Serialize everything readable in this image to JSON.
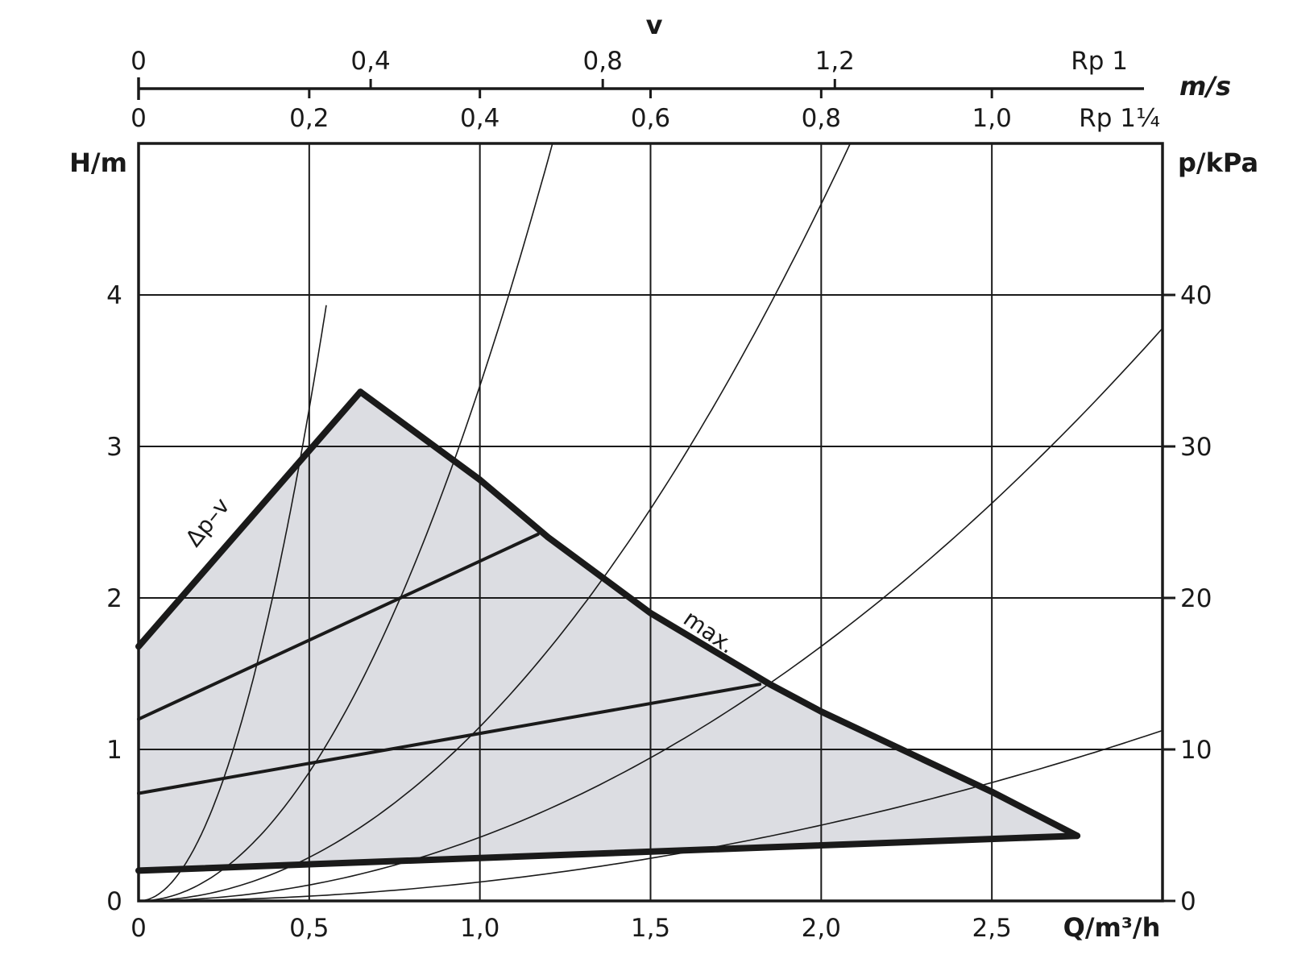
{
  "chart_data": {
    "type": "area",
    "title": "",
    "top_axis": {
      "label": "v",
      "unit": "m/s",
      "scales": [
        {
          "name": "Rp 1",
          "ticks": [
            "0",
            "0,4",
            "0,8",
            "1,2"
          ],
          "tick_values": [
            0,
            0.4,
            0.8,
            1.2
          ],
          "q_per_v": 1.7
        },
        {
          "name": "Rp 1¼",
          "ticks": [
            "0",
            "0,2",
            "0,4",
            "0,6",
            "0,8",
            "1,0"
          ],
          "tick_values": [
            0,
            0.2,
            0.4,
            0.6,
            0.8,
            1.0
          ],
          "q_per_v": 2.5
        }
      ]
    },
    "xaxis": {
      "label": "Q/m³/h",
      "range": [
        0,
        3.0
      ],
      "ticks": [
        "0",
        "0,5",
        "1,0",
        "1,5",
        "2,0",
        "2,5"
      ],
      "tick_values": [
        0,
        0.5,
        1.0,
        1.5,
        2.0,
        2.5
      ]
    },
    "yaxis_left": {
      "label": "H/m",
      "range": [
        0,
        5.0
      ],
      "ticks": [
        "0",
        "1",
        "2",
        "3",
        "4"
      ],
      "tick_values": [
        0,
        1,
        2,
        3,
        4
      ]
    },
    "yaxis_right": {
      "label": "p/kPa",
      "range": [
        0,
        50
      ],
      "ticks": [
        "0",
        "10",
        "20",
        "30",
        "40"
      ],
      "tick_values": [
        0,
        10,
        20,
        30,
        40
      ]
    },
    "grid": true,
    "operating_region": {
      "fill": "#dcdde2",
      "boundary": [
        [
          0,
          0.2
        ],
        [
          0,
          1.68
        ],
        [
          0.65,
          3.36
        ],
        [
          1.0,
          2.78
        ],
        [
          1.2,
          2.4
        ],
        [
          1.5,
          1.9
        ],
        [
          1.85,
          1.43
        ],
        [
          2.0,
          1.25
        ],
        [
          2.5,
          0.72
        ],
        [
          2.75,
          0.43
        ],
        [
          0,
          0.2
        ]
      ]
    },
    "series": [
      {
        "name": "Δp-v",
        "x": [
          0,
          0.65
        ],
        "y": [
          1.68,
          3.36
        ],
        "style": "thick"
      },
      {
        "name": "max.",
        "x": [
          0.65,
          1.0,
          1.2,
          1.5,
          1.85,
          2.0,
          2.5,
          2.75
        ],
        "y": [
          3.36,
          2.78,
          2.4,
          1.9,
          1.43,
          1.25,
          0.72,
          0.43
        ],
        "style": "thick"
      },
      {
        "x": [
          0,
          2.75
        ],
        "y": [
          0.2,
          0.43
        ],
        "style": "thick"
      },
      {
        "x": [
          0,
          1.17
        ],
        "y": [
          1.2,
          2.42
        ],
        "style": "medium"
      },
      {
        "x": [
          0,
          1.82
        ],
        "y": [
          0.71,
          1.43
        ],
        "style": "medium"
      }
    ],
    "system_curves": [
      {
        "k": 13.0,
        "q_max": 0.55
      },
      {
        "k": 3.4,
        "q_max": 1.22
      },
      {
        "k": 1.15,
        "q_max": 2.1
      },
      {
        "k": 0.42,
        "q_max": 3.0
      },
      {
        "k": 0.125,
        "q_max": 3.0
      }
    ],
    "annotations": [
      {
        "text": "Δp–v",
        "x": 0.28,
        "y": 2.45
      },
      {
        "text": "max.",
        "x": 1.6,
        "y": 1.62
      }
    ]
  }
}
